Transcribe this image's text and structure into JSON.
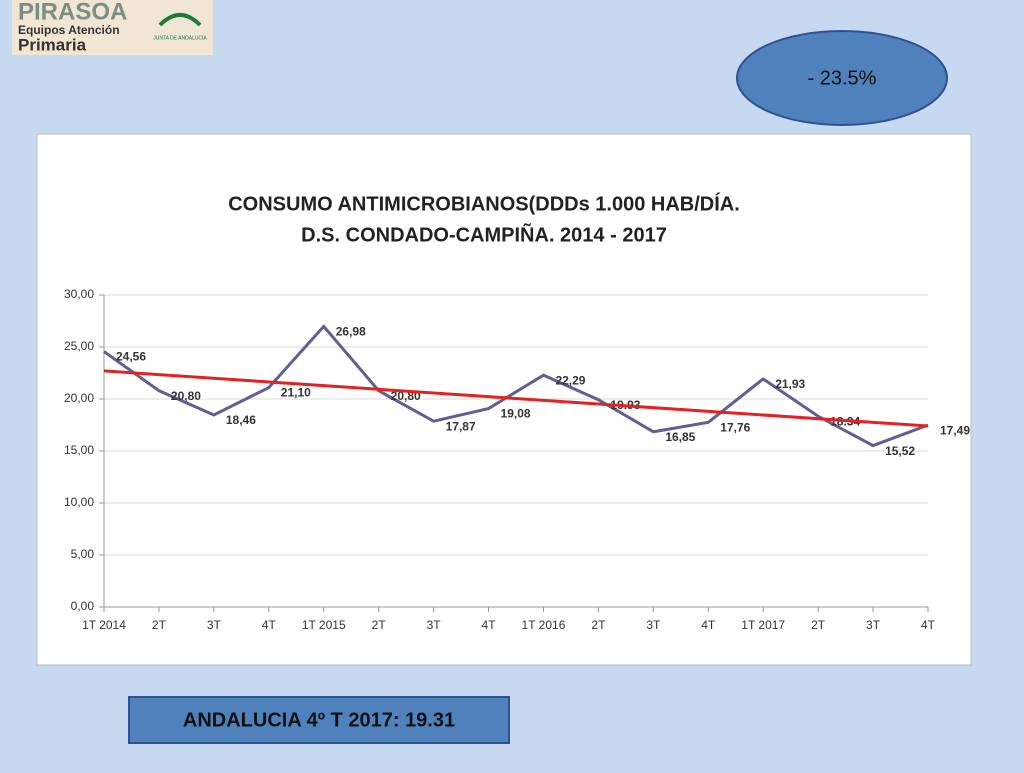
{
  "logo": {
    "title": "PIRASOA",
    "line1": "Equipos Atención",
    "line2": "Primaria",
    "org": "JUNTA DE ANDALUCIA"
  },
  "badge": "- 23.5%",
  "footer": "ANDALUCIA 4º T 2017: 19.31",
  "chart_data": {
    "type": "line",
    "title": [
      "CONSUMO ANTIMICROBIANOS(DDDs 1.000 HAB/DÍA.",
      "D.S. CONDADO-CAMPIÑA. 2014 - 2017"
    ],
    "categories": [
      "1T 2014",
      "2T",
      "3T",
      "4T",
      "1T 2015",
      "2T",
      "3T",
      "4T",
      "1T 2016",
      "2T",
      "3T",
      "4T",
      "1T 2017",
      "2T",
      "3T",
      "4T"
    ],
    "series": [
      {
        "color": "#5f5f95",
        "values": [
          24.56,
          20.8,
          18.46,
          21.1,
          26.98,
          20.8,
          17.87,
          19.08,
          22.29,
          19.93,
          16.85,
          17.76,
          21.93,
          18.34,
          15.52,
          17.49
        ],
        "value_labels": [
          "24,56",
          "20,80",
          "18,46",
          "21,10",
          "26,98",
          "20,80",
          "17,87",
          "19,08",
          "22,29",
          "19.93",
          "16,85",
          "17,76",
          "21,93",
          "18.34",
          "15,52",
          "17,49"
        ]
      }
    ],
    "trendline": {
      "color": "#e32222",
      "values": [
        22.7,
        17.4
      ]
    },
    "ylim": [
      0,
      30
    ],
    "yticks": [
      {
        "value": 0,
        "label": "0,00"
      },
      {
        "value": 5,
        "label": "5,00"
      },
      {
        "value": 10,
        "label": "10,00"
      },
      {
        "value": 15,
        "label": "15,00"
      },
      {
        "value": 20,
        "label": "20,00"
      },
      {
        "value": 25,
        "label": "25,00"
      },
      {
        "value": 30,
        "label": "30,00"
      }
    ],
    "grid": true
  }
}
